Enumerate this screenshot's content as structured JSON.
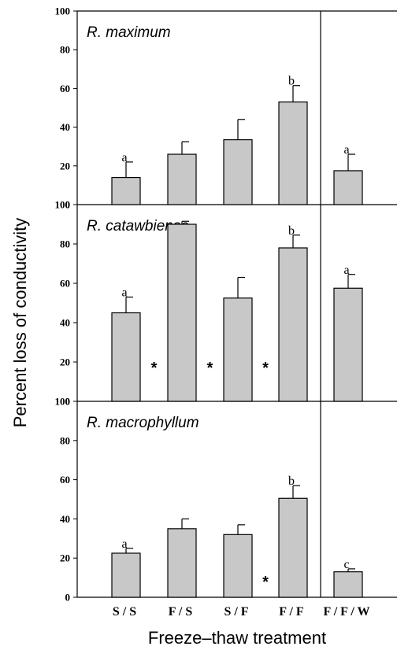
{
  "chart_data": {
    "type": "bar",
    "xlabel": "Freeze–thaw treatment",
    "ylabel": "Percent loss of conductivity",
    "ylim": [
      0,
      100
    ],
    "yticks": [
      0,
      20,
      40,
      60,
      80,
      100
    ],
    "categories": [
      "S / S",
      "F / S",
      "S / F",
      "F / F",
      "F / F / W"
    ],
    "bar_color": "#c8c8c8",
    "panels": [
      {
        "title": "R. maximum",
        "values": [
          14,
          26,
          33.5,
          53,
          17.5
        ],
        "errors": [
          8,
          6.5,
          10.5,
          8.5,
          8.5
        ],
        "letters": [
          "a",
          "",
          "",
          "b",
          "a"
        ],
        "asterisks": []
      },
      {
        "title": "R. catawbiense",
        "values": [
          45,
          90,
          52.5,
          78,
          57.5
        ],
        "errors": [
          8,
          1.5,
          10.5,
          6.5,
          7
        ],
        "letters": [
          "a",
          "",
          "",
          "b",
          "a"
        ],
        "asterisks": [
          "*",
          "*",
          "*"
        ]
      },
      {
        "title": "R. macrophyllum",
        "values": [
          22.5,
          35,
          32,
          50.5,
          13
        ],
        "errors": [
          2.5,
          5,
          5,
          6.5,
          1.5
        ],
        "letters": [
          "a",
          "",
          "",
          "b",
          "c"
        ],
        "asterisks": [
          "*"
        ]
      }
    ]
  }
}
